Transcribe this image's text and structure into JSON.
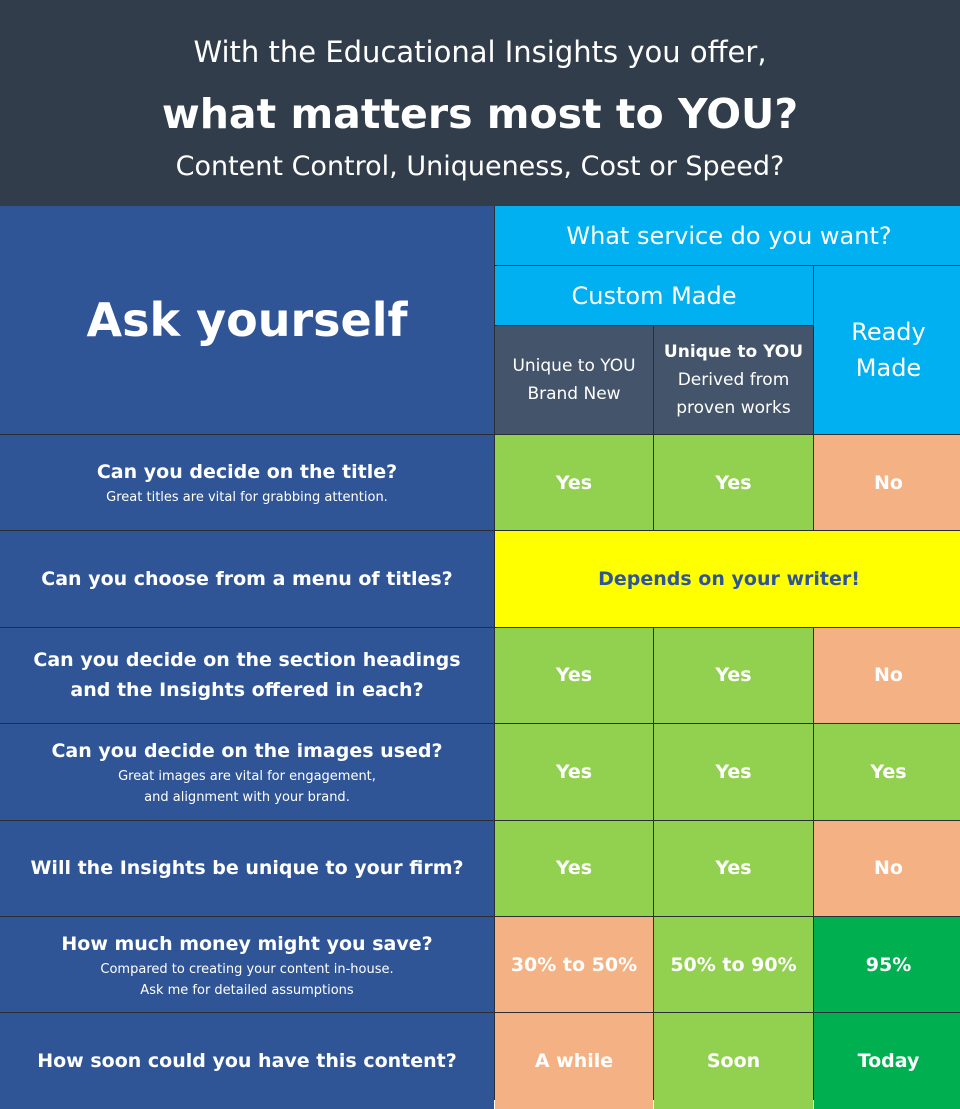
{
  "banner": {
    "line1": "With the Educational Insights you offer,",
    "line2": "what matters most to YOU?",
    "line3": "Content Control, Uniqueness, Cost or Speed?"
  },
  "header": {
    "ask": "Ask yourself",
    "service": "What service do you want?",
    "custom_made": "Custom Made",
    "ready_made_line1": "Ready",
    "ready_made_line2": "Made",
    "col1_line1": "Unique to YOU",
    "col1_line2": "Brand New",
    "col2_line1": "Unique to YOU",
    "col2_line2": "Derived from",
    "col2_line3": "proven works"
  },
  "rows": [
    {
      "question": "Can you decide on the title?",
      "sub1": "Great titles are vital for grabbing attention.",
      "a": "Yes",
      "b": "Yes",
      "c": "No"
    },
    {
      "question": "Can you choose from a menu of titles?",
      "merged": "Depends on your writer!"
    },
    {
      "question1": "Can you decide on the section headings",
      "question2": "and the Insights offered in each?",
      "a": "Yes",
      "b": "Yes",
      "c": "No"
    },
    {
      "question": "Can you decide on the images used?",
      "sub1": "Great images are vital for engagement,",
      "sub2": "and alignment with your brand.",
      "a": "Yes",
      "b": "Yes",
      "c": "Yes"
    },
    {
      "question": "Will the Insights be unique to your firm?",
      "a": "Yes",
      "b": "Yes",
      "c": "No"
    },
    {
      "question": "How much money might you save?",
      "sub1": "Compared to creating your content in-house.",
      "sub2": "Ask me for detailed assumptions",
      "a": "30% to 50%",
      "b": "50% to 90%",
      "c": "95%"
    },
    {
      "question": "How soon could you have this content?",
      "a": "A while",
      "b": "Soon",
      "c": "Today"
    }
  ],
  "colors": {
    "banner": "#323d4b",
    "question_blue": "#2f5597",
    "cyan": "#00b0f0",
    "slate": "#44546a",
    "green": "#92d050",
    "salmon": "#f4b183",
    "dark_green": "#00b050",
    "yellow": "#ffff00"
  }
}
